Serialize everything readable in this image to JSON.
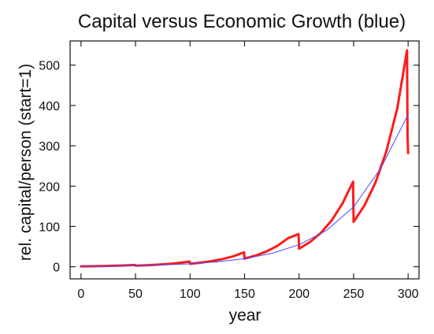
{
  "chart_data": {
    "type": "line",
    "title": "Capital versus Economic Growth (blue)",
    "xlabel": "year",
    "ylabel": "rel. capital/person (start=1)",
    "xlim": [
      -10,
      310
    ],
    "ylim": [
      -30,
      560
    ],
    "x_ticks": [
      0,
      50,
      100,
      150,
      200,
      250,
      300
    ],
    "y_ticks": [
      0,
      100,
      200,
      300,
      400,
      500
    ],
    "grid": false,
    "legend": "none",
    "series": [
      {
        "color": "#ff1a1a",
        "line_width": 3,
        "x": [
          0,
          10,
          20,
          30,
          40,
          49.5,
          50,
          60,
          70,
          80,
          90,
          99.5,
          100,
          110,
          120,
          130,
          140,
          149.5,
          150,
          160,
          170,
          180,
          190,
          199.5,
          200,
          210,
          220,
          230,
          240,
          249.5,
          250,
          260,
          270,
          280,
          290,
          299,
          299.5,
          300
        ],
        "y": [
          1,
          1.3,
          1.8,
          2.4,
          3.3,
          4.5,
          2.7,
          3.7,
          5.1,
          7,
          9.6,
          13,
          7.4,
          10.2,
          14,
          19.2,
          26.3,
          36,
          20.1,
          27.6,
          37.8,
          51.8,
          71,
          81,
          44.8,
          61.4,
          84.1,
          115.3,
          158,
          211,
          111.2,
          152.3,
          208.7,
          286,
          392,
          537,
          320,
          282
        ]
      },
      {
        "color": "#4a4aff",
        "line_width": 1,
        "x": [
          0,
          25,
          50,
          75,
          100,
          125,
          150,
          175,
          200,
          225,
          250,
          275,
          300
        ],
        "y": [
          1,
          1.6,
          2.7,
          4.4,
          7.4,
          12.2,
          20.1,
          33.2,
          54.6,
          90,
          148.4,
          244.7,
          378
        ]
      }
    ]
  }
}
